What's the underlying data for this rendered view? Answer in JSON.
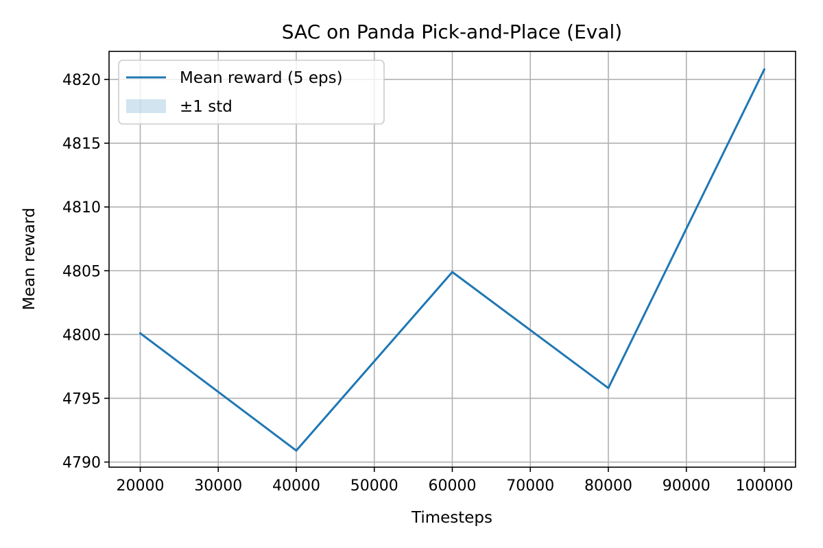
{
  "chart_data": {
    "type": "line",
    "title": "SAC on Panda Pick-and-Place (Eval)",
    "xlabel": "Timesteps",
    "ylabel": "Mean reward",
    "x": [
      20000,
      40000,
      60000,
      80000,
      100000
    ],
    "series": [
      {
        "name": "Mean reward (5 eps)",
        "values": [
          4800.1,
          4790.9,
          4804.9,
          4795.8,
          4820.8
        ],
        "color": "#1f77b4"
      }
    ],
    "band": {
      "name": "±1 std",
      "color": "#1f77b4",
      "opacity": 0.2
    },
    "xlim": [
      16000,
      104000
    ],
    "ylim": [
      4789.6,
      4822.2
    ],
    "xticks": [
      20000,
      30000,
      40000,
      50000,
      60000,
      70000,
      80000,
      90000,
      100000
    ],
    "xtick_labels": [
      "20000",
      "30000",
      "40000",
      "50000",
      "60000",
      "70000",
      "80000",
      "90000",
      "100000"
    ],
    "yticks": [
      4790,
      4795,
      4800,
      4805,
      4810,
      4815,
      4820
    ],
    "ytick_labels": [
      "4790",
      "4795",
      "4800",
      "4805",
      "4810",
      "4815",
      "4820"
    ],
    "grid": true,
    "legend": {
      "placement": "upper left",
      "entries": [
        "Mean reward (5 eps)",
        "±1 std"
      ]
    }
  }
}
